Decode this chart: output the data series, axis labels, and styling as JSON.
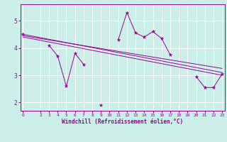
{
  "title": "",
  "xlabel": "Windchill (Refroidissement éolien,°C)",
  "background_color": "#cceee8",
  "line_color": "#990099",
  "grid_color": "#ffffff",
  "x_values": [
    0,
    1,
    2,
    3,
    4,
    5,
    6,
    7,
    8,
    9,
    10,
    11,
    12,
    13,
    14,
    15,
    16,
    17,
    18,
    19,
    20,
    21,
    22,
    23
  ],
  "series1": [
    4.5,
    null,
    null,
    4.1,
    3.7,
    2.6,
    3.8,
    3.4,
    null,
    1.9,
    null,
    4.3,
    5.3,
    4.55,
    4.4,
    4.6,
    4.35,
    3.75,
    null,
    null,
    2.95,
    2.55,
    2.55,
    3.05
  ],
  "series2_y_start": 4.5,
  "series2_y_end": 3.1,
  "series3_y_start": 4.45,
  "series3_y_end": 3.25,
  "series4_y_start": 4.4,
  "series4_y_end": 3.0,
  "ylim": [
    1.7,
    5.6
  ],
  "xlim": [
    -0.3,
    23.3
  ],
  "yticks": [
    2,
    3,
    4,
    5
  ],
  "xticks": [
    0,
    2,
    3,
    4,
    5,
    6,
    7,
    8,
    9,
    10,
    11,
    12,
    13,
    14,
    15,
    16,
    17,
    18,
    19,
    20,
    21,
    22,
    23
  ]
}
